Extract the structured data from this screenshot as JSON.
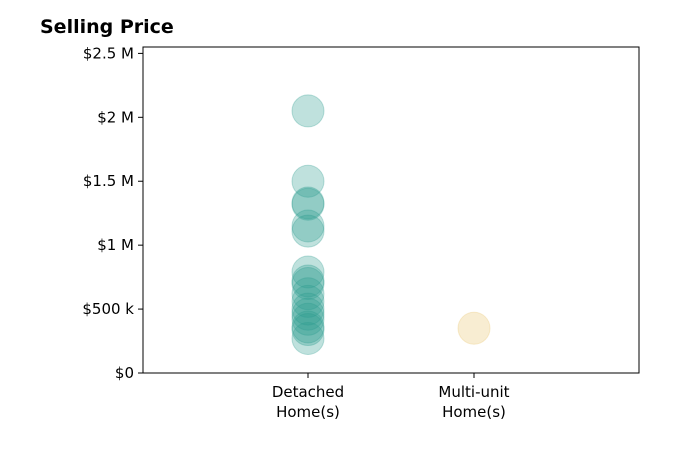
{
  "chart_data": {
    "type": "scatter",
    "title": "Selling Price",
    "xlabel": "",
    "ylabel": "",
    "categories": [
      {
        "lines": [
          "Detached",
          "Home(s)"
        ]
      },
      {
        "lines": [
          "Multi-unit",
          "Home(s)"
        ]
      }
    ],
    "ylim": [
      0,
      2550000
    ],
    "yticks": [
      {
        "value": 0,
        "label": "$0"
      },
      {
        "value": 500000,
        "label": "$500 k"
      },
      {
        "value": 1000000,
        "label": "$1 M"
      },
      {
        "value": 1500000,
        "label": "$1.5 M"
      },
      {
        "value": 2000000,
        "label": "$2 M"
      },
      {
        "value": 2500000,
        "label": "$2.5 M"
      }
    ],
    "grid": false,
    "series": [
      {
        "category": 0,
        "color": "#2a9d8f",
        "opacity": 0.3,
        "values": [
          2050000,
          1500000,
          1330000,
          1320000,
          1150000,
          1110000,
          790000,
          720000,
          700000,
          620000,
          560000,
          500000,
          460000,
          420000,
          360000,
          340000,
          270000
        ]
      },
      {
        "category": 1,
        "color": "#e9c46a",
        "opacity": 0.3,
        "values": [
          350000
        ]
      }
    ]
  }
}
